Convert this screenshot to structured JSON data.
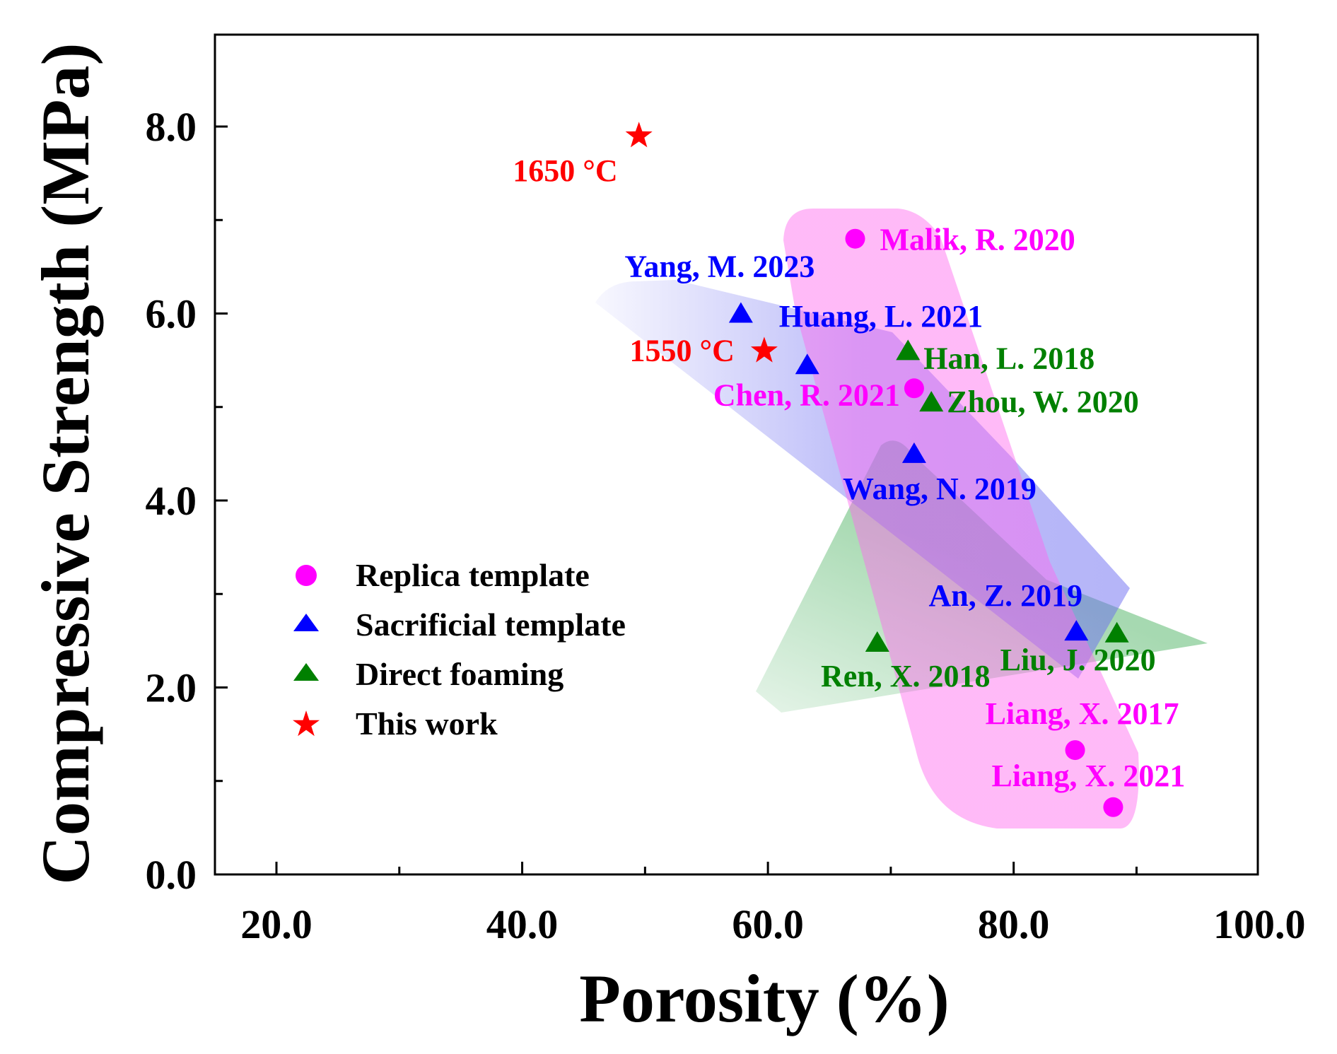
{
  "chart_data": {
    "type": "scatter",
    "xlabel": "Porosity (%)",
    "ylabel": "Compressive Strength (MPa)",
    "xlim": [
      15,
      100
    ],
    "ylim": [
      0,
      9
    ],
    "xticks": [
      20,
      30,
      40,
      50,
      60,
      70,
      80,
      90,
      100
    ],
    "xtick_labels": [
      "20.0",
      "40.0",
      "60.0",
      "80.0",
      "100.0"
    ],
    "yticks": [
      0,
      1,
      2,
      3,
      4,
      5,
      6,
      7,
      8
    ],
    "ytick_labels": [
      "0.0",
      "2.0",
      "4.0",
      "6.0",
      "8.0"
    ],
    "legend_position": "lower-left",
    "colors": {
      "replica": "#ff00ff",
      "sacrificial": "#0000ff",
      "foaming": "#008000",
      "this_work": "#ff0000"
    },
    "series": [
      {
        "name": "Replica template",
        "key": "replica",
        "marker": "circle",
        "points": [
          {
            "x": 67.1,
            "y": 6.8,
            "label": "Malik, R. 2020"
          },
          {
            "x": 71.9,
            "y": 5.2,
            "label": "Chen, R. 2021"
          },
          {
            "x": 85.0,
            "y": 1.33,
            "label": "Liang, X. 2017"
          },
          {
            "x": 88.1,
            "y": 0.72,
            "label": "Liang, X. 2021"
          }
        ]
      },
      {
        "name": "Sacrificial template",
        "key": "sacrificial",
        "marker": "triangle",
        "points": [
          {
            "x": 57.8,
            "y": 6.0,
            "label": "Yang, M. 2023"
          },
          {
            "x": 63.2,
            "y": 5.45,
            "label": "Huang, L. 2021"
          },
          {
            "x": 71.9,
            "y": 4.5,
            "label": "Wang, N. 2019"
          },
          {
            "x": 85.1,
            "y": 2.6,
            "label": "An, Z. 2019"
          }
        ]
      },
      {
        "name": "Direct foaming",
        "key": "foaming",
        "marker": "triangle",
        "points": [
          {
            "x": 71.4,
            "y": 5.6,
            "label": "Han, L. 2018"
          },
          {
            "x": 73.3,
            "y": 5.05,
            "label": "Zhou, W. 2020"
          },
          {
            "x": 68.9,
            "y": 2.48,
            "label": "Ren, X. 2018"
          },
          {
            "x": 88.4,
            "y": 2.58,
            "label": "Liu, J. 2020"
          }
        ]
      },
      {
        "name": "This work",
        "key": "this_work",
        "marker": "star",
        "points": [
          {
            "x": 49.5,
            "y": 7.9,
            "label": "1650 °C"
          },
          {
            "x": 59.7,
            "y": 5.6,
            "label": "1550 °C"
          }
        ]
      }
    ]
  }
}
